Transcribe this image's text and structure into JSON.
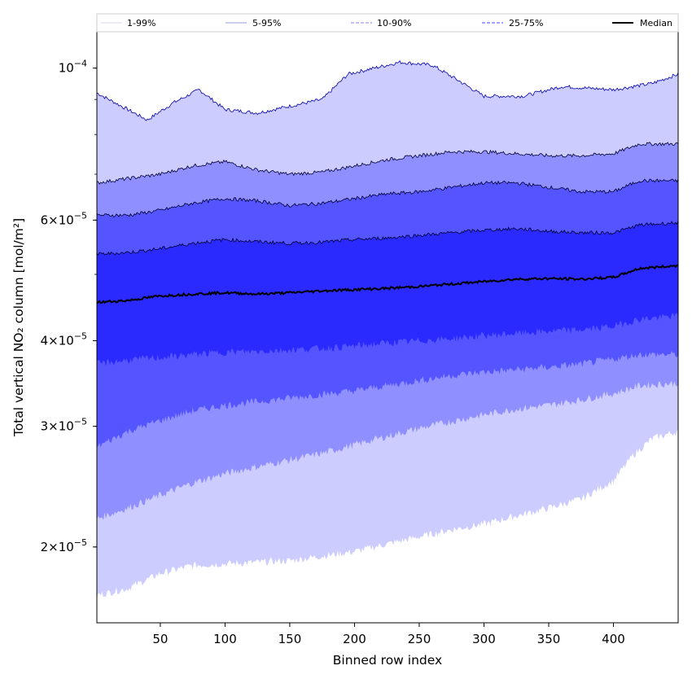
{
  "chart_data": {
    "type": "area",
    "xlabel": "Binned row index",
    "ylabel": "Total vertical NO₂ column [mol/m²]",
    "y_scale": "log",
    "xlim": [
      1,
      450
    ],
    "ylim": [
      1.55e-05,
      0.000113
    ],
    "grid": false,
    "legend_placement": "top, spanning full width above plot",
    "x_ticks": [
      50,
      100,
      150,
      200,
      250,
      300,
      350,
      400
    ],
    "y_ticks": [
      {
        "value": 2e-05,
        "mantissa": "2",
        "exponent": "−5"
      },
      {
        "value": 3e-05,
        "mantissa": "3",
        "exponent": "−5"
      },
      {
        "value": 4e-05,
        "mantissa": "4",
        "exponent": "−5"
      },
      {
        "value": 6e-05,
        "mantissa": "6",
        "exponent": "−5"
      },
      {
        "value": 0.0001,
        "mantissa": "10",
        "exponent": "−4"
      }
    ],
    "y_tick_times": "×",
    "legend": [
      {
        "name": "1-99%",
        "color": "#d8d8f0",
        "style": "solid"
      },
      {
        "name": "5-95%",
        "color": "#9a9ad8",
        "style": "solid"
      },
      {
        "name": "10-90%",
        "color": "#8080ff",
        "style": "dashed"
      },
      {
        "name": "25-75%",
        "color": "#4444ff",
        "style": "dashed"
      },
      {
        "name": "Median",
        "color": "#000000",
        "style": "solid"
      }
    ],
    "bands": [
      {
        "name": "1-99%",
        "fill": "#ccccff",
        "edge": "#0000aa",
        "upper": [
          [
            1,
            9.2e-05
          ],
          [
            20,
            8.8e-05
          ],
          [
            40,
            8.4e-05
          ],
          [
            60,
            8.9e-05
          ],
          [
            80,
            9.3e-05
          ],
          [
            100,
            8.7e-05
          ],
          [
            125,
            8.6e-05
          ],
          [
            150,
            8.8e-05
          ],
          [
            175,
            9e-05
          ],
          [
            195,
            9.8e-05
          ],
          [
            215,
            0.0001
          ],
          [
            235,
            0.000102
          ],
          [
            260,
            0.000101
          ],
          [
            280,
            9.6e-05
          ],
          [
            300,
            9.1e-05
          ],
          [
            330,
            9.1e-05
          ],
          [
            360,
            9.4e-05
          ],
          [
            400,
            9.3e-05
          ],
          [
            430,
            9.5e-05
          ],
          [
            450,
            9.8e-05
          ]
        ],
        "lower": [
          [
            1,
            1.7e-05
          ],
          [
            25,
            1.74e-05
          ],
          [
            50,
            1.83e-05
          ],
          [
            75,
            1.88e-05
          ],
          [
            100,
            1.89e-05
          ],
          [
            125,
            1.9e-05
          ],
          [
            150,
            1.91e-05
          ],
          [
            175,
            1.94e-05
          ],
          [
            200,
            1.97e-05
          ],
          [
            225,
            2.02e-05
          ],
          [
            250,
            2.07e-05
          ],
          [
            275,
            2.12e-05
          ],
          [
            300,
            2.16e-05
          ],
          [
            325,
            2.22e-05
          ],
          [
            350,
            2.28e-05
          ],
          [
            375,
            2.35e-05
          ],
          [
            400,
            2.5e-05
          ],
          [
            415,
            2.72e-05
          ],
          [
            430,
            2.88e-05
          ],
          [
            450,
            2.95e-05
          ]
        ]
      },
      {
        "name": "5-95%",
        "fill": "#8f8fff",
        "edge": "#000033",
        "upper": [
          [
            1,
            6.8e-05
          ],
          [
            25,
            6.9e-05
          ],
          [
            50,
            7e-05
          ],
          [
            75,
            7.2e-05
          ],
          [
            100,
            7.3e-05
          ],
          [
            125,
            7.1e-05
          ],
          [
            150,
            7e-05
          ],
          [
            175,
            7.05e-05
          ],
          [
            200,
            7.2e-05
          ],
          [
            225,
            7.35e-05
          ],
          [
            250,
            7.45e-05
          ],
          [
            275,
            7.55e-05
          ],
          [
            300,
            7.55e-05
          ],
          [
            325,
            7.5e-05
          ],
          [
            350,
            7.45e-05
          ],
          [
            375,
            7.45e-05
          ],
          [
            400,
            7.5e-05
          ],
          [
            420,
            7.75e-05
          ],
          [
            450,
            7.75e-05
          ]
        ],
        "lower": [
          [
            1,
            2.2e-05
          ],
          [
            25,
            2.28e-05
          ],
          [
            50,
            2.38e-05
          ],
          [
            75,
            2.48e-05
          ],
          [
            100,
            2.56e-05
          ],
          [
            125,
            2.62e-05
          ],
          [
            150,
            2.68e-05
          ],
          [
            175,
            2.74e-05
          ],
          [
            200,
            2.82e-05
          ],
          [
            225,
            2.9e-05
          ],
          [
            250,
            2.98e-05
          ],
          [
            275,
            3.05e-05
          ],
          [
            300,
            3.12e-05
          ],
          [
            325,
            3.18e-05
          ],
          [
            350,
            3.22e-05
          ],
          [
            375,
            3.28e-05
          ],
          [
            400,
            3.35e-05
          ],
          [
            420,
            3.44e-05
          ],
          [
            450,
            3.47e-05
          ]
        ]
      },
      {
        "name": "10-90%",
        "fill": "#5555ff",
        "edge": "#000033",
        "upper": [
          [
            1,
            6.1e-05
          ],
          [
            25,
            6.1e-05
          ],
          [
            50,
            6.2e-05
          ],
          [
            75,
            6.35e-05
          ],
          [
            100,
            6.45e-05
          ],
          [
            125,
            6.4e-05
          ],
          [
            150,
            6.3e-05
          ],
          [
            175,
            6.35e-05
          ],
          [
            200,
            6.45e-05
          ],
          [
            225,
            6.55e-05
          ],
          [
            250,
            6.6e-05
          ],
          [
            275,
            6.7e-05
          ],
          [
            300,
            6.8e-05
          ],
          [
            325,
            6.8e-05
          ],
          [
            350,
            6.7e-05
          ],
          [
            375,
            6.6e-05
          ],
          [
            400,
            6.6e-05
          ],
          [
            420,
            6.85e-05
          ],
          [
            450,
            6.85e-05
          ]
        ],
        "lower": [
          [
            1,
            2.8e-05
          ],
          [
            25,
            2.95e-05
          ],
          [
            50,
            3.06e-05
          ],
          [
            75,
            3.16e-05
          ],
          [
            100,
            3.22e-05
          ],
          [
            125,
            3.26e-05
          ],
          [
            150,
            3.3e-05
          ],
          [
            175,
            3.34e-05
          ],
          [
            200,
            3.38e-05
          ],
          [
            225,
            3.44e-05
          ],
          [
            250,
            3.5e-05
          ],
          [
            275,
            3.56e-05
          ],
          [
            300,
            3.6e-05
          ],
          [
            325,
            3.63e-05
          ],
          [
            350,
            3.66e-05
          ],
          [
            375,
            3.7e-05
          ],
          [
            400,
            3.76e-05
          ],
          [
            420,
            3.82e-05
          ],
          [
            450,
            3.82e-05
          ]
        ]
      },
      {
        "name": "25-75%",
        "fill": "#2a2aff",
        "edge": "#000033",
        "upper": [
          [
            1,
            5.35e-05
          ],
          [
            25,
            5.38e-05
          ],
          [
            50,
            5.45e-05
          ],
          [
            75,
            5.55e-05
          ],
          [
            100,
            5.62e-05
          ],
          [
            125,
            5.58e-05
          ],
          [
            150,
            5.55e-05
          ],
          [
            175,
            5.57e-05
          ],
          [
            200,
            5.62e-05
          ],
          [
            225,
            5.65e-05
          ],
          [
            250,
            5.7e-05
          ],
          [
            275,
            5.75e-05
          ],
          [
            300,
            5.8e-05
          ],
          [
            325,
            5.83e-05
          ],
          [
            350,
            5.78e-05
          ],
          [
            375,
            5.75e-05
          ],
          [
            400,
            5.75e-05
          ],
          [
            420,
            5.9e-05
          ],
          [
            450,
            5.95e-05
          ]
        ],
        "lower": [
          [
            1,
            3.7e-05
          ],
          [
            25,
            3.75e-05
          ],
          [
            50,
            3.78e-05
          ],
          [
            75,
            3.82e-05
          ],
          [
            100,
            3.85e-05
          ],
          [
            125,
            3.86e-05
          ],
          [
            150,
            3.88e-05
          ],
          [
            175,
            3.9e-05
          ],
          [
            200,
            3.93e-05
          ],
          [
            225,
            3.97e-05
          ],
          [
            250,
            4e-05
          ],
          [
            275,
            4.03e-05
          ],
          [
            300,
            4.07e-05
          ],
          [
            325,
            4.1e-05
          ],
          [
            350,
            4.13e-05
          ],
          [
            375,
            4.15e-05
          ],
          [
            400,
            4.2e-05
          ],
          [
            420,
            4.3e-05
          ],
          [
            450,
            4.35e-05
          ]
        ]
      }
    ],
    "median": {
      "name": "Median",
      "color": "#000000",
      "values": [
        [
          1,
          4.55e-05
        ],
        [
          25,
          4.58e-05
        ],
        [
          50,
          4.65e-05
        ],
        [
          75,
          4.68e-05
        ],
        [
          100,
          4.7e-05
        ],
        [
          125,
          4.68e-05
        ],
        [
          150,
          4.7e-05
        ],
        [
          175,
          4.73e-05
        ],
        [
          200,
          4.75e-05
        ],
        [
          225,
          4.77e-05
        ],
        [
          250,
          4.8e-05
        ],
        [
          275,
          4.84e-05
        ],
        [
          300,
          4.88e-05
        ],
        [
          325,
          4.92e-05
        ],
        [
          350,
          4.93e-05
        ],
        [
          375,
          4.92e-05
        ],
        [
          400,
          4.95e-05
        ],
        [
          420,
          5.1e-05
        ],
        [
          450,
          5.15e-05
        ]
      ]
    }
  }
}
